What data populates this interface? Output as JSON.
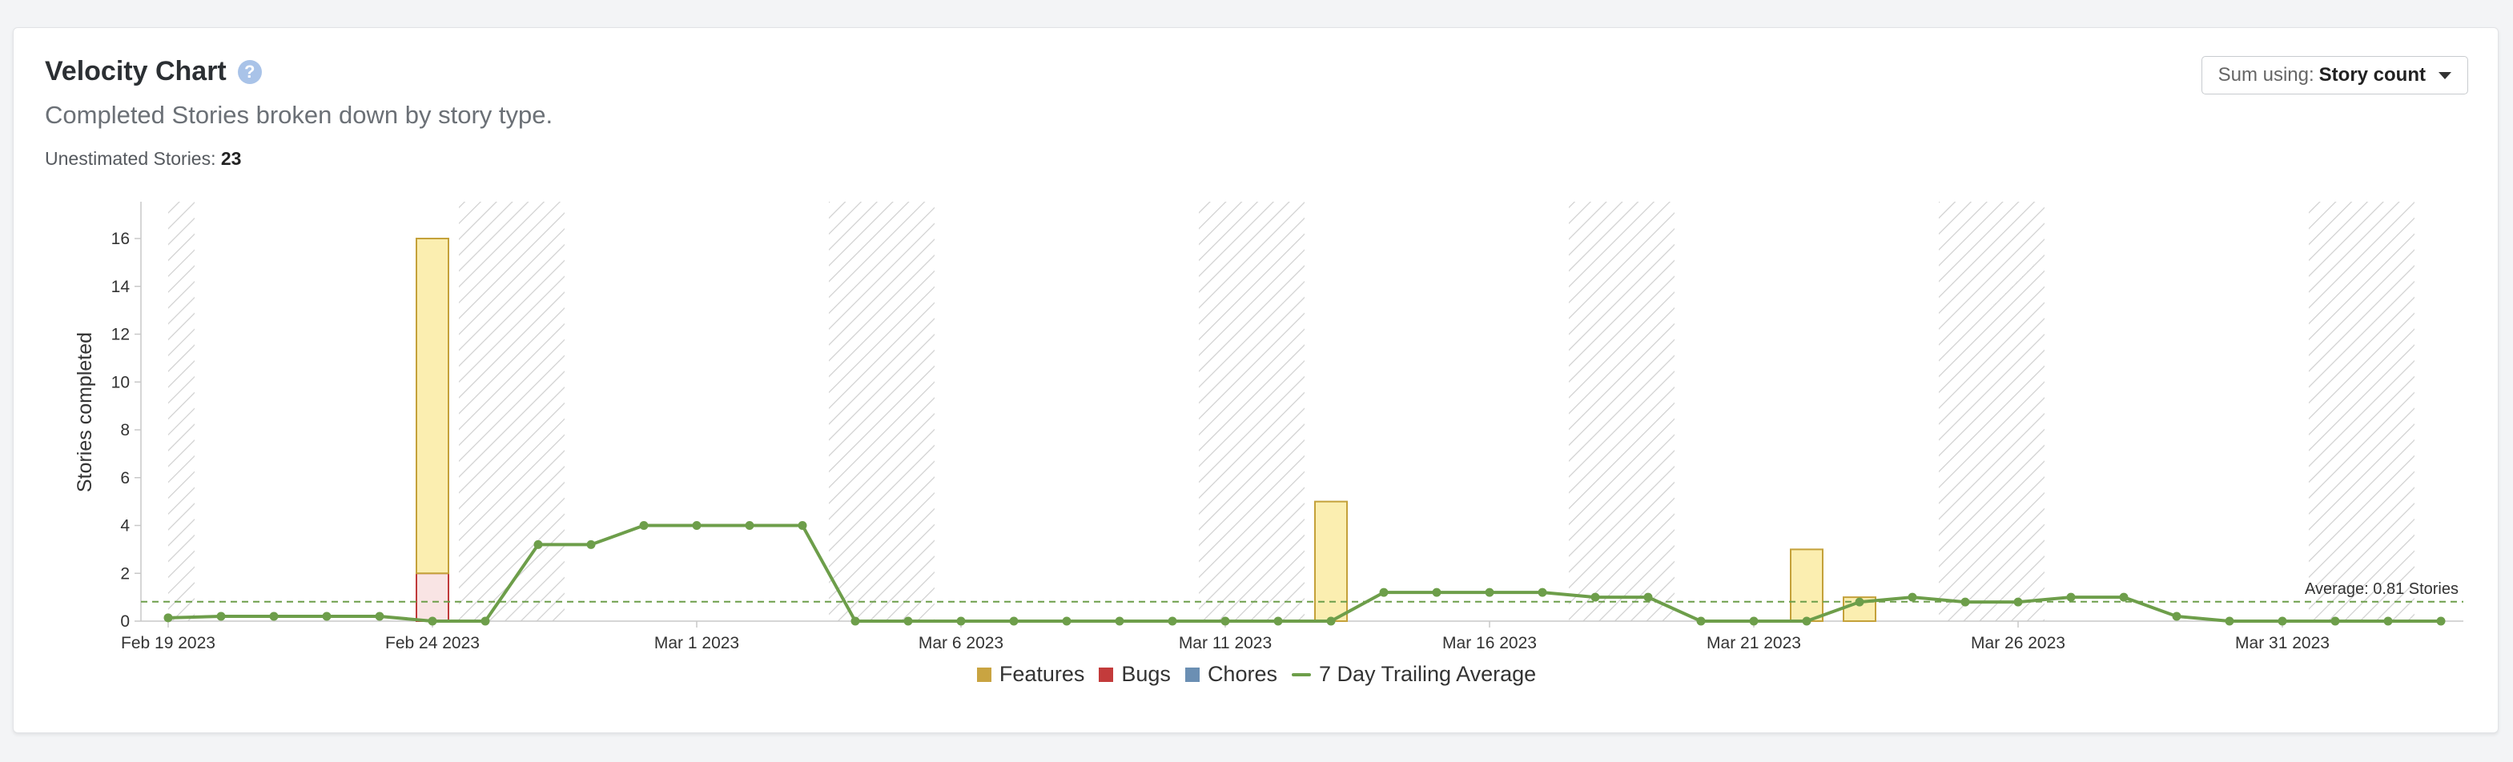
{
  "header": {
    "title": "Velocity Chart",
    "help_icon": "question-circle-icon",
    "subtitle": "Completed Stories broken down by story type.",
    "unestimated_label": "Unestimated Stories:",
    "unestimated_value": "23"
  },
  "sum_using": {
    "label": "Sum using:",
    "value": "Story count",
    "icon": "caret-down-icon"
  },
  "colors": {
    "features_fill": "#fbeeb0",
    "features_stroke": "#c4a13a",
    "features_legend": "#c9a441",
    "bugs_fill": "#f9e4e4",
    "bugs_stroke": "#c03a3a",
    "bugs_legend": "#c33b3b",
    "chores_legend": "#6b8fb3",
    "trailing": "#6d9e4a",
    "hatch": "#d4d4d4"
  },
  "chart_data": {
    "type": "bar",
    "ylabel": "Stories completed",
    "ylim": [
      0,
      17
    ],
    "yticks": [
      0,
      2,
      4,
      6,
      8,
      10,
      12,
      14,
      16
    ],
    "x_start": "2023-02-19",
    "x_end": "2023-04-04",
    "x_ticks": [
      {
        "date": "2023-02-19",
        "label": "Feb 19 2023"
      },
      {
        "date": "2023-02-24",
        "label": "Feb 24 2023"
      },
      {
        "date": "2023-03-01",
        "label": "Mar 1 2023"
      },
      {
        "date": "2023-03-06",
        "label": "Mar 6 2023"
      },
      {
        "date": "2023-03-11",
        "label": "Mar 11 2023"
      },
      {
        "date": "2023-03-16",
        "label": "Mar 16 2023"
      },
      {
        "date": "2023-03-21",
        "label": "Mar 21 2023"
      },
      {
        "date": "2023-03-26",
        "label": "Mar 26 2023"
      },
      {
        "date": "2023-03-31",
        "label": "Mar 31 2023"
      }
    ],
    "weekends": [
      [
        "2023-02-19",
        "2023-02-19"
      ],
      [
        "2023-02-25",
        "2023-02-26"
      ],
      [
        "2023-03-04",
        "2023-03-05"
      ],
      [
        "2023-03-11",
        "2023-03-12"
      ],
      [
        "2023-03-18",
        "2023-03-19"
      ],
      [
        "2023-03-25",
        "2023-03-26"
      ],
      [
        "2023-04-01",
        "2023-04-02"
      ]
    ],
    "bars": [
      {
        "date": "2023-02-24",
        "features": 14,
        "bugs": 2,
        "chores": 0
      },
      {
        "date": "2023-03-13",
        "features": 5,
        "bugs": 0,
        "chores": 0
      },
      {
        "date": "2023-03-22",
        "features": 3,
        "bugs": 0,
        "chores": 0
      },
      {
        "date": "2023-03-23",
        "features": 1,
        "bugs": 0,
        "chores": 0
      }
    ],
    "series": [
      {
        "name": "7 Day Trailing Average",
        "points": [
          [
            "2023-02-19",
            0.14
          ],
          [
            "2023-02-20",
            0.2
          ],
          [
            "2023-02-21",
            0.2
          ],
          [
            "2023-02-22",
            0.2
          ],
          [
            "2023-02-23",
            0.2
          ],
          [
            "2023-02-24",
            0
          ],
          [
            "2023-02-25",
            0
          ],
          [
            "2023-02-26",
            3.2
          ],
          [
            "2023-02-27",
            3.2
          ],
          [
            "2023-02-28",
            4.0
          ],
          [
            "2023-03-01",
            4.0
          ],
          [
            "2023-03-02",
            4.0
          ],
          [
            "2023-03-03",
            4.0
          ],
          [
            "2023-03-04",
            0
          ],
          [
            "2023-03-05",
            0
          ],
          [
            "2023-03-06",
            0
          ],
          [
            "2023-03-07",
            0
          ],
          [
            "2023-03-08",
            0
          ],
          [
            "2023-03-09",
            0
          ],
          [
            "2023-03-10",
            0
          ],
          [
            "2023-03-11",
            0
          ],
          [
            "2023-03-12",
            0
          ],
          [
            "2023-03-13",
            0
          ],
          [
            "2023-03-14",
            1.2
          ],
          [
            "2023-03-15",
            1.2
          ],
          [
            "2023-03-16",
            1.2
          ],
          [
            "2023-03-17",
            1.2
          ],
          [
            "2023-03-18",
            1.0
          ],
          [
            "2023-03-19",
            1.0
          ],
          [
            "2023-03-20",
            0
          ],
          [
            "2023-03-21",
            0
          ],
          [
            "2023-03-22",
            0
          ],
          [
            "2023-03-23",
            0.8
          ],
          [
            "2023-03-24",
            1.0
          ],
          [
            "2023-03-25",
            0.8
          ],
          [
            "2023-03-26",
            0.8
          ],
          [
            "2023-03-27",
            1.0
          ],
          [
            "2023-03-28",
            1.0
          ],
          [
            "2023-03-29",
            0.2
          ],
          [
            "2023-03-30",
            0
          ],
          [
            "2023-03-31",
            0
          ],
          [
            "2023-04-01",
            0
          ],
          [
            "2023-04-02",
            0
          ],
          [
            "2023-04-03",
            0
          ]
        ]
      }
    ],
    "average": {
      "value": 0.81,
      "label": "Average: 0.81 Stories"
    },
    "legend": [
      "Features",
      "Bugs",
      "Chores",
      "7 Day Trailing Average"
    ],
    "legend_placement": "bottom-center",
    "grid": false
  }
}
